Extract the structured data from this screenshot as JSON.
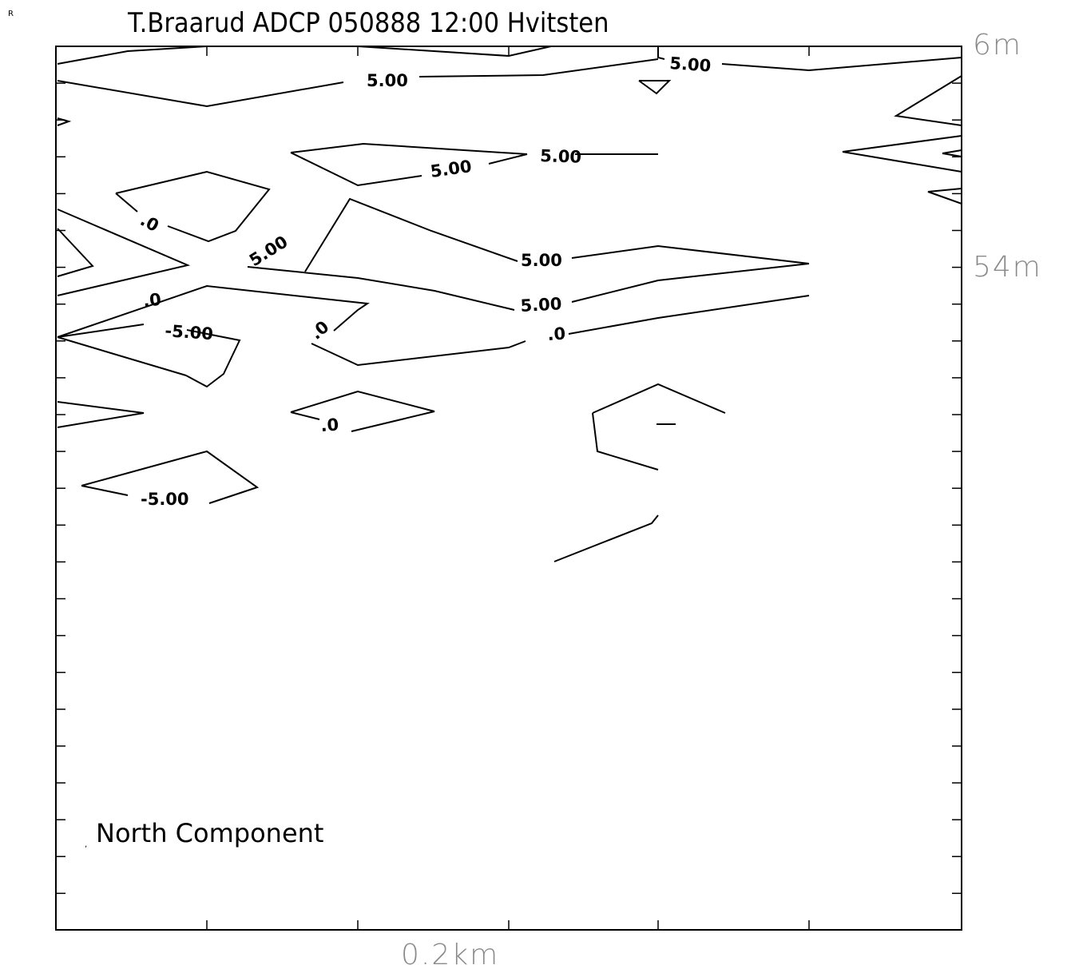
{
  "chart_data": {
    "type": "contour",
    "title": "T.Braarud ADCP 050888 12:00 Hvitsten",
    "corner_mark": "R",
    "x_axis_label": "0.2km",
    "y_axis_labels": [
      "6m",
      "54m"
    ],
    "annotation": "North Component",
    "contour_labels": [
      "5.00",
      "5.00",
      "5.00",
      "5.00",
      "5.00",
      "5.00",
      "5.00",
      ".0",
      ".0",
      ".0",
      ".0",
      ".0",
      "-5.00",
      "-5.00"
    ]
  }
}
